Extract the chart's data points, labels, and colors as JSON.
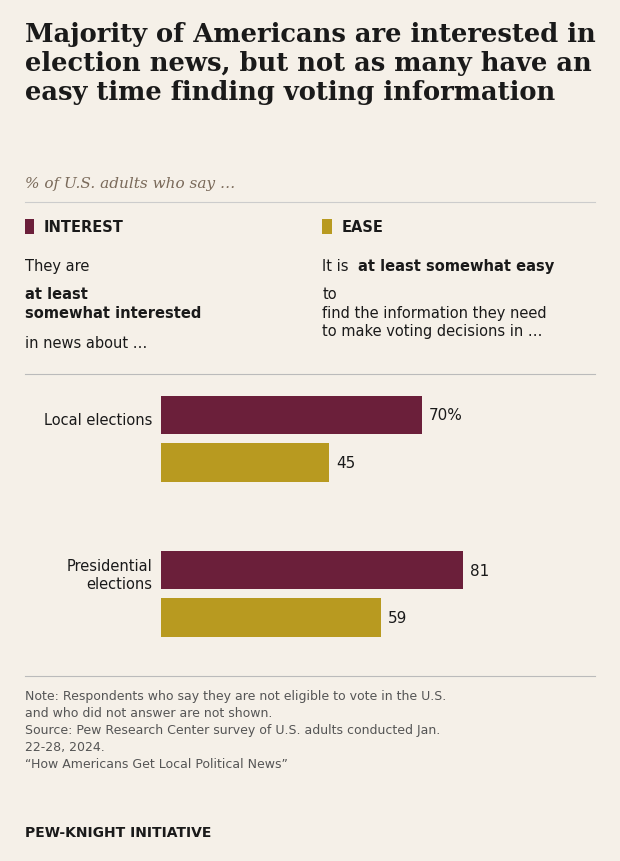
{
  "title": "Majority of Americans are interested in\nelection news, but not as many have an\neasy time finding voting information",
  "subtitle": "% of U.S. adults who say …",
  "interest_color": "#6B1F3A",
  "ease_color": "#B89A20",
  "background_color": "#F5F0E8",
  "categories": [
    "Local elections",
    "Presidential\nelections"
  ],
  "interest_values": [
    70,
    81
  ],
  "ease_values": [
    45,
    59
  ],
  "interest_labels": [
    "70%",
    "81"
  ],
  "ease_labels": [
    "45",
    "59"
  ],
  "legend_interest_label": "INTEREST",
  "legend_ease_label": "EASE",
  "legend_interest_desc_bold": "at least\nsomewhat interested",
  "legend_interest_desc_pre": "They are ",
  "legend_interest_desc_post": "\nin news about …",
  "legend_ease_desc_bold": "at least somewhat easy",
  "legend_ease_desc_pre": "It is ",
  "legend_ease_desc_post": " to\nfind the information they need\nto make voting decisions in …",
  "note": "Note: Respondents who say they are not eligible to vote in the U.S.\nand who did not answer are not shown.\nSource: Pew Research Center survey of U.S. adults conducted Jan.\n22-28, 2024.\n“How Americans Get Local Political News”",
  "footer": "PEW-KNIGHT INITIATIVE",
  "max_val": 100
}
